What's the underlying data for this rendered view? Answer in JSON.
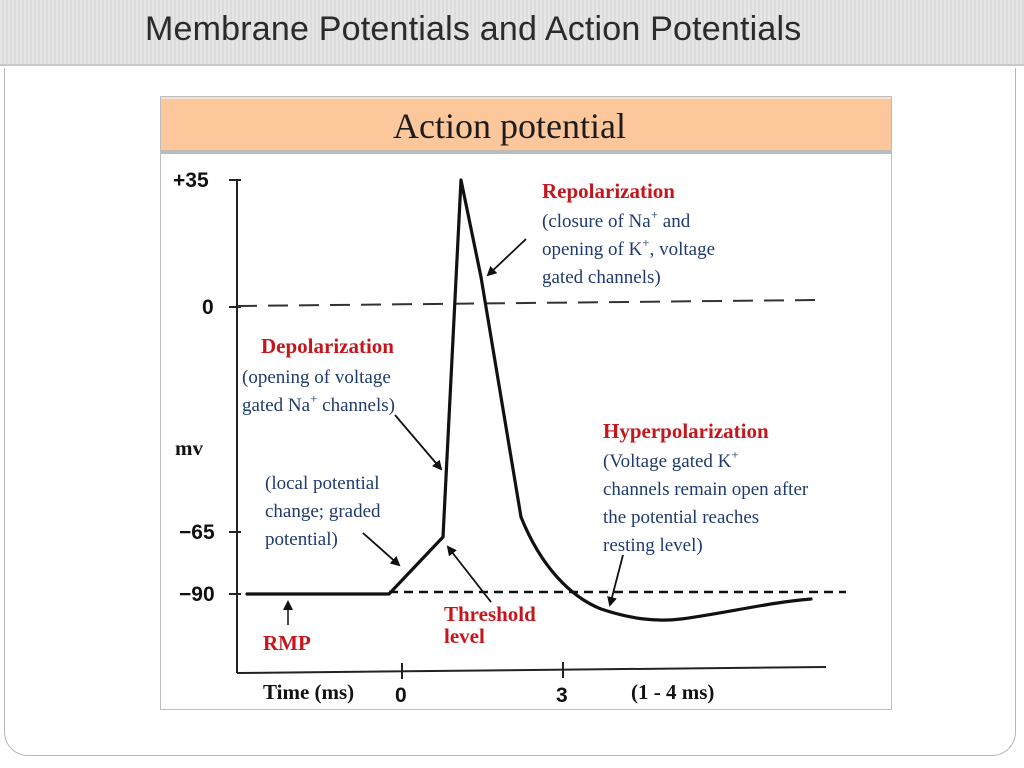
{
  "slide": {
    "title": "Membrane Potentials and Action Potentials"
  },
  "figure": {
    "banner_title": "Action potential"
  },
  "chart_data": {
    "type": "line",
    "title": "Action potential",
    "ylabel": "mv",
    "xlabel": "Time (ms)",
    "y_ticks": [
      "+35",
      "0",
      "−65",
      "−90"
    ],
    "x_ticks": [
      "0",
      "3"
    ],
    "x_note": "(1 - 4 ms)",
    "series": [
      {
        "values": [
          {
            "t": -1.9,
            "mv": -90
          },
          {
            "t": 0,
            "mv": -90
          },
          {
            "t": 0.5,
            "mv": -65
          },
          {
            "t": 0.6,
            "mv": -65
          },
          {
            "t": 0.8,
            "mv": 35
          },
          {
            "t": 1.4,
            "mv": -40
          },
          {
            "t": 2.0,
            "mv": -80
          },
          {
            "t": 3.0,
            "mv": -90
          },
          {
            "t": 3.9,
            "mv": -95
          },
          {
            "t": 6.0,
            "mv": -92
          },
          {
            "t": 7.0,
            "mv": -91
          }
        ]
      }
    ],
    "reference_lines": [
      {
        "mv": 0,
        "style": "dashed"
      },
      {
        "mv": -90,
        "style": "dashed"
      }
    ],
    "annotations": {
      "repolarization": {
        "heading": "Repolarization",
        "line1_a": "(closure of Na",
        "line1_sup": "+",
        "line1_b": " and",
        "line2_a": "opening of K",
        "line2_sup": "+",
        "line2_b": ", voltage",
        "line3": "gated channels)"
      },
      "depolarization": {
        "heading": "Depolarization",
        "line1": "(opening of voltage",
        "line2_a": "gated Na",
        "line2_sup": "+",
        "line2_b": " channels)"
      },
      "local_potential": {
        "line1": "(local potential",
        "line2": "change; graded",
        "line3": "potential)"
      },
      "hyperpolarization": {
        "heading": "Hyperpolarization",
        "line1_a": "(Voltage gated K",
        "line1_sup": "+",
        "line2": "channels remain open after",
        "line3": "the potential reaches",
        "line4": "resting level)"
      },
      "threshold": {
        "line1": "Threshold",
        "line2": "level"
      },
      "rmp": "RMP"
    }
  }
}
